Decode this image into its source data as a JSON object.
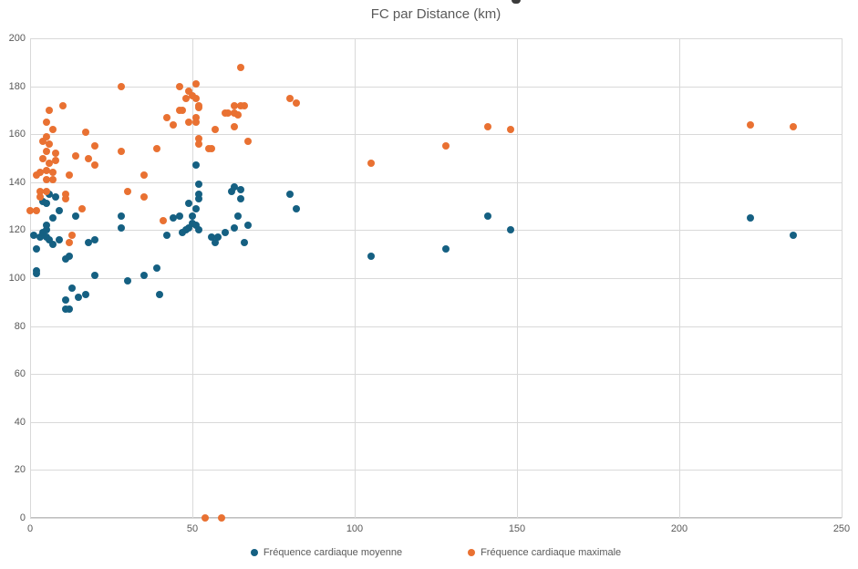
{
  "title": "FC par Distance (km)",
  "y_axis_partial_label": ")",
  "legend": [
    {
      "label": "Fréquence cardiaque moyenne",
      "color": "#156082"
    },
    {
      "label": "Fréquence cardiaque maximale",
      "color": "#E97132"
    }
  ],
  "chart_data": {
    "type": "scatter",
    "title": "FC par Distance (km)",
    "xlabel": "Distance (km)",
    "ylabel": ")",
    "xlim": [
      0,
      250
    ],
    "ylim": [
      0,
      200
    ],
    "x_ticks": [
      0,
      50,
      100,
      150,
      200,
      250
    ],
    "y_ticks": [
      0,
      20,
      40,
      60,
      80,
      100,
      120,
      140,
      160,
      180,
      200
    ],
    "grid": true,
    "legend_position": "bottom",
    "series": [
      {
        "name": "Fréquence cardiaque moyenne",
        "color": "#156082",
        "points": [
          [
            1,
            118
          ],
          [
            2,
            112
          ],
          [
            2,
            103
          ],
          [
            2,
            102
          ],
          [
            3,
            117
          ],
          [
            4,
            119
          ],
          [
            4,
            132
          ],
          [
            5,
            131
          ],
          [
            5,
            120
          ],
          [
            5,
            122
          ],
          [
            5,
            117
          ],
          [
            6,
            135
          ],
          [
            6,
            116
          ],
          [
            7,
            114
          ],
          [
            7,
            125
          ],
          [
            8,
            134
          ],
          [
            9,
            128
          ],
          [
            9,
            116
          ],
          [
            11,
            108
          ],
          [
            12,
            109
          ],
          [
            11,
            91
          ],
          [
            11,
            87
          ],
          [
            12,
            87
          ],
          [
            13,
            96
          ],
          [
            14,
            126
          ],
          [
            15,
            92
          ],
          [
            17,
            93
          ],
          [
            18,
            115
          ],
          [
            20,
            116
          ],
          [
            20,
            101
          ],
          [
            28,
            126
          ],
          [
            28,
            121
          ],
          [
            30,
            99
          ],
          [
            35,
            101
          ],
          [
            39,
            104
          ],
          [
            40,
            93
          ],
          [
            42,
            118
          ],
          [
            44,
            125
          ],
          [
            46,
            126
          ],
          [
            47,
            119
          ],
          [
            48,
            120
          ],
          [
            49,
            121
          ],
          [
            49,
            131
          ],
          [
            50,
            126
          ],
          [
            50,
            123
          ],
          [
            51,
            129
          ],
          [
            51,
            122
          ],
          [
            52,
            120
          ],
          [
            52,
            135
          ],
          [
            52,
            133
          ],
          [
            52,
            139
          ],
          [
            51,
            147
          ],
          [
            56,
            117
          ],
          [
            57,
            115
          ],
          [
            58,
            117
          ],
          [
            60,
            119
          ],
          [
            62,
            136
          ],
          [
            63,
            138
          ],
          [
            63,
            121
          ],
          [
            64,
            126
          ],
          [
            65,
            137
          ],
          [
            65,
            133
          ],
          [
            66,
            115
          ],
          [
            67,
            122
          ],
          [
            80,
            135
          ],
          [
            82,
            129
          ],
          [
            105,
            109
          ],
          [
            128,
            112
          ],
          [
            141,
            126
          ],
          [
            148,
            120
          ],
          [
            222,
            125
          ],
          [
            235,
            118
          ]
        ]
      },
      {
        "name": "Fréquence cardiaque maximale",
        "color": "#E97132",
        "points": [
          [
            0,
            128
          ],
          [
            2,
            128
          ],
          [
            3,
            134
          ],
          [
            3,
            136
          ],
          [
            5,
            136
          ],
          [
            2,
            143
          ],
          [
            3,
            144
          ],
          [
            5,
            145
          ],
          [
            7,
            144
          ],
          [
            5,
            141
          ],
          [
            7,
            141
          ],
          [
            12,
            143
          ],
          [
            4,
            150
          ],
          [
            6,
            148
          ],
          [
            8,
            149
          ],
          [
            5,
            153
          ],
          [
            8,
            152
          ],
          [
            4,
            157
          ],
          [
            6,
            156
          ],
          [
            5,
            159
          ],
          [
            7,
            162
          ],
          [
            5,
            165
          ],
          [
            6,
            170
          ],
          [
            10,
            172
          ],
          [
            11,
            135
          ],
          [
            11,
            133
          ],
          [
            14,
            151
          ],
          [
            18,
            150
          ],
          [
            16,
            129
          ],
          [
            12,
            115
          ],
          [
            13,
            118
          ],
          [
            17,
            161
          ],
          [
            20,
            155
          ],
          [
            20,
            147
          ],
          [
            28,
            153
          ],
          [
            28,
            180
          ],
          [
            30,
            136
          ],
          [
            35,
            143
          ],
          [
            35,
            134
          ],
          [
            39,
            154
          ],
          [
            41,
            124
          ],
          [
            42,
            167
          ],
          [
            44,
            164
          ],
          [
            46,
            170
          ],
          [
            47,
            170
          ],
          [
            46,
            180
          ],
          [
            49,
            178
          ],
          [
            48,
            175
          ],
          [
            50,
            176
          ],
          [
            51,
            175
          ],
          [
            51,
            181
          ],
          [
            52,
            172
          ],
          [
            52,
            171
          ],
          [
            51,
            167
          ],
          [
            49,
            165
          ],
          [
            51,
            165
          ],
          [
            52,
            158
          ],
          [
            52,
            156
          ],
          [
            55,
            154
          ],
          [
            56,
            154
          ],
          [
            57,
            162
          ],
          [
            60,
            169
          ],
          [
            61,
            169
          ],
          [
            63,
            172
          ],
          [
            65,
            172
          ],
          [
            66,
            172
          ],
          [
            63,
            169
          ],
          [
            64,
            168
          ],
          [
            63,
            163
          ],
          [
            67,
            157
          ],
          [
            65,
            188
          ],
          [
            80,
            175
          ],
          [
            82,
            173
          ],
          [
            105,
            148
          ],
          [
            128,
            155
          ],
          [
            141,
            163
          ],
          [
            148,
            162
          ],
          [
            222,
            164
          ],
          [
            235,
            163
          ],
          [
            54,
            0
          ],
          [
            59,
            0
          ]
        ]
      }
    ]
  }
}
